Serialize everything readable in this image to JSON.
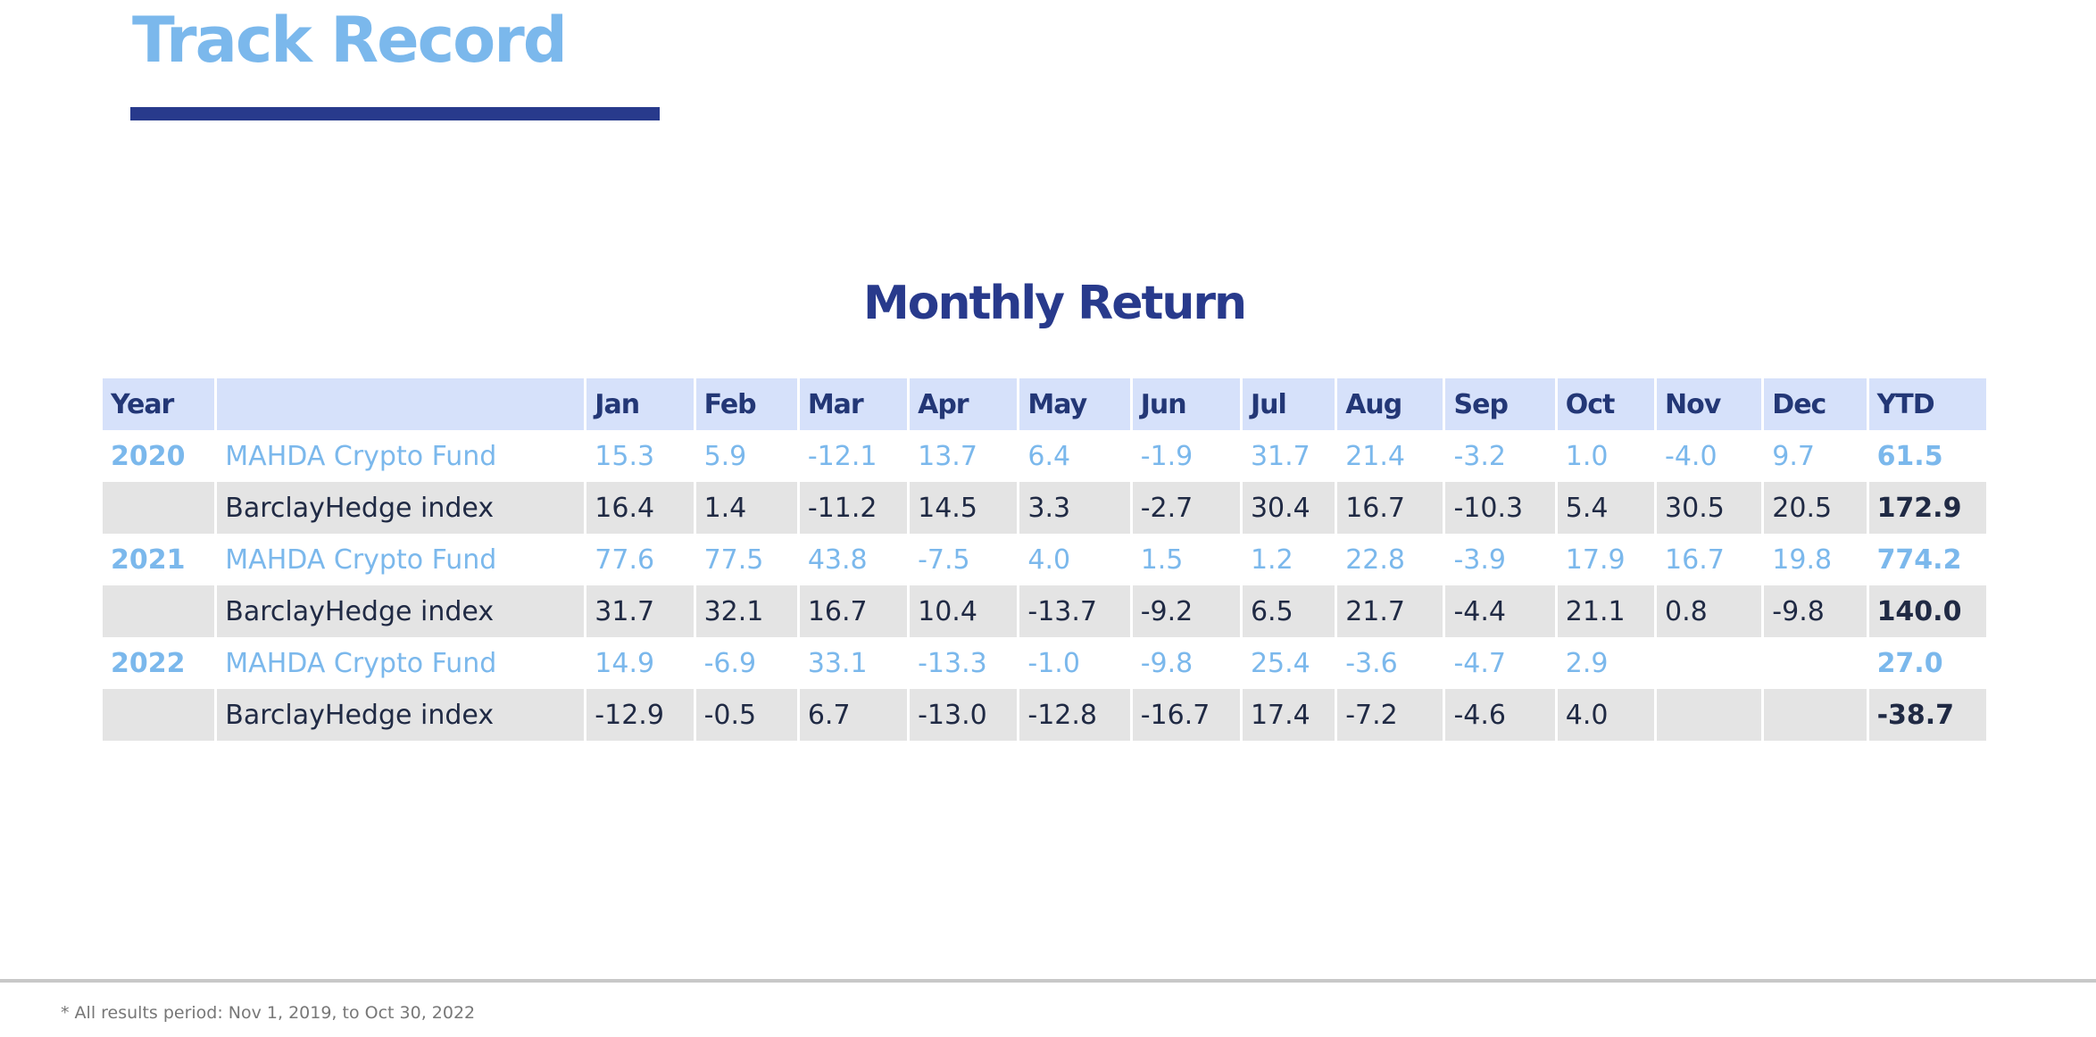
{
  "page": {
    "title": "Track Record",
    "table_title": "Monthly Return",
    "footnote": "* All results period: Nov 1, 2019, to Oct 30, 2022"
  },
  "colors": {
    "fund_text": "#7bb8ec",
    "index_text": "#202a44",
    "header_bg": "#d6e1fa",
    "header_text": "#233776",
    "index_row_bg": "#e4e4e4",
    "title_bar": "#283a8c"
  },
  "table": {
    "headers": {
      "year": "Year",
      "name": "",
      "months": [
        "Jan",
        "Feb",
        "Mar",
        "Apr",
        "May",
        "Jun",
        "Jul",
        "Aug",
        "Sep",
        "Oct",
        "Nov",
        "Dec"
      ],
      "ytd": "YTD"
    },
    "rows": [
      {
        "year": "2020",
        "name": "MAHDA Crypto Fund",
        "values": [
          "15.3",
          "5.9",
          "-12.1",
          "13.7",
          "6.4",
          "-1.9",
          "31.7",
          "21.4",
          "-3.2",
          "1.0",
          "-4.0",
          "9.7"
        ],
        "ytd": "61.5"
      },
      {
        "year": "",
        "name": "BarclayHedge index",
        "values": [
          "16.4",
          "1.4",
          "-11.2",
          "14.5",
          "3.3",
          "-2.7",
          "30.4",
          "16.7",
          "-10.3",
          "5.4",
          "30.5",
          "20.5"
        ],
        "ytd": "172.9"
      },
      {
        "year": "2021",
        "name": "MAHDA Crypto Fund",
        "values": [
          "77.6",
          "77.5",
          "43.8",
          "-7.5",
          "4.0",
          "1.5",
          "1.2",
          "22.8",
          "-3.9",
          "17.9",
          "16.7",
          "19.8"
        ],
        "ytd": "774.2"
      },
      {
        "year": "",
        "name": "BarclayHedge index",
        "values": [
          "31.7",
          "32.1",
          "16.7",
          "10.4",
          "-13.7",
          "-9.2",
          "6.5",
          "21.7",
          "-4.4",
          "21.1",
          "0.8",
          "-9.8"
        ],
        "ytd": "140.0"
      },
      {
        "year": "2022",
        "name": "MAHDA Crypto Fund",
        "values": [
          "14.9",
          "-6.9",
          "33.1",
          "-13.3",
          "-1.0",
          "-9.8",
          "25.4",
          "-3.6",
          "-4.7",
          "2.9",
          "",
          ""
        ],
        "ytd": "27.0"
      },
      {
        "year": "",
        "name": "BarclayHedge index",
        "values": [
          "-12.9",
          "-0.5",
          "6.7",
          "-13.0",
          "-12.8",
          "-16.7",
          "17.4",
          "-7.2",
          "-4.6",
          "4.0",
          "",
          ""
        ],
        "ytd": "-38.7"
      }
    ]
  }
}
